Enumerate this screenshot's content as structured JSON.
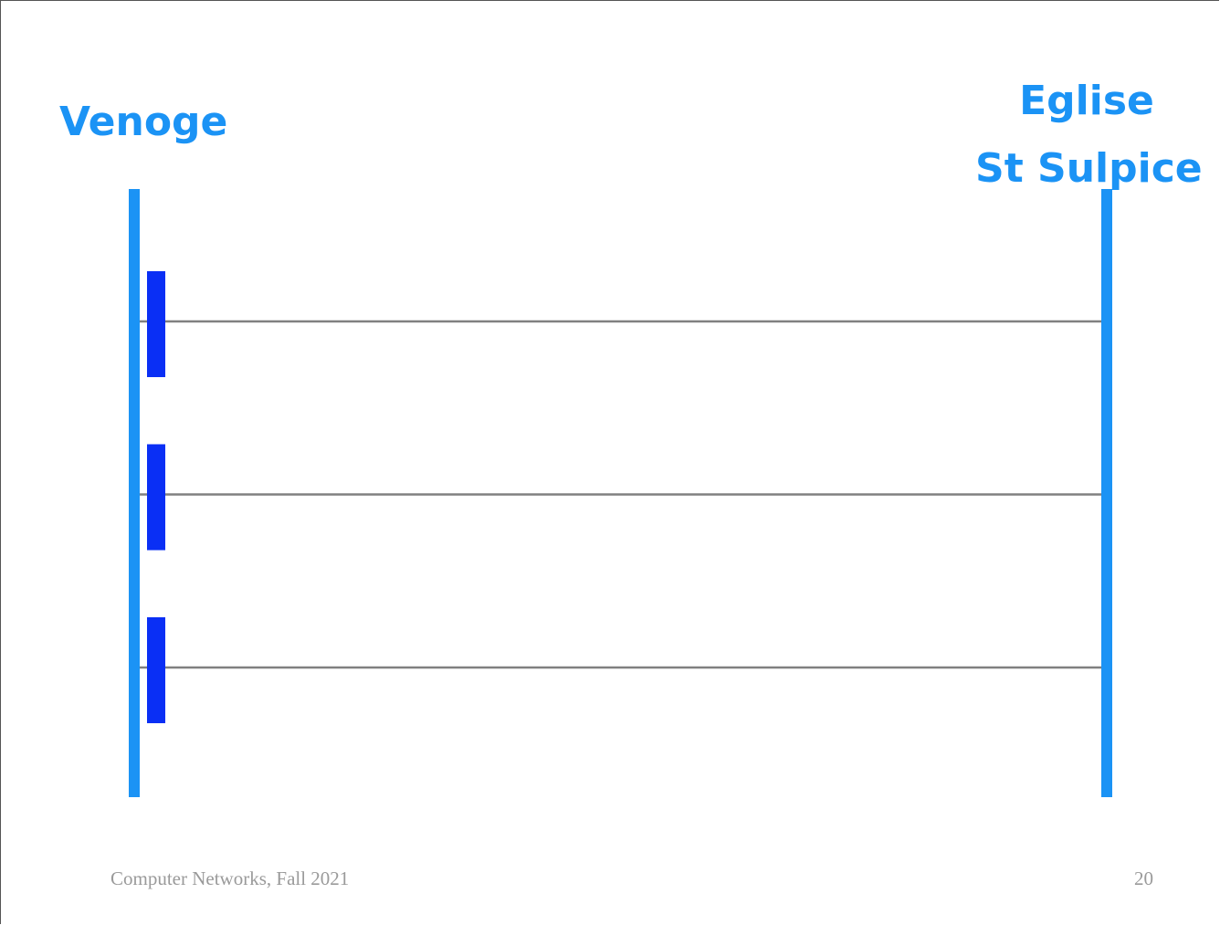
{
  "diagram": {
    "left_node": {
      "label": "Venoge"
    },
    "right_node": {
      "label_lines": [
        "Eglise",
        "St Sulpice"
      ]
    },
    "messages": [
      {
        "from": "Venoge",
        "to": "Eglise St Sulpice"
      },
      {
        "from": "Venoge",
        "to": "Eglise St Sulpice"
      },
      {
        "from": "Venoge",
        "to": "Eglise St Sulpice"
      }
    ]
  },
  "colors": {
    "lifeline": "#1b93f5",
    "activation_box": "#0a2ff5",
    "message_line": "#808080"
  },
  "footer": {
    "course": "Computer Networks, Fall 2021",
    "page_number": "20"
  }
}
